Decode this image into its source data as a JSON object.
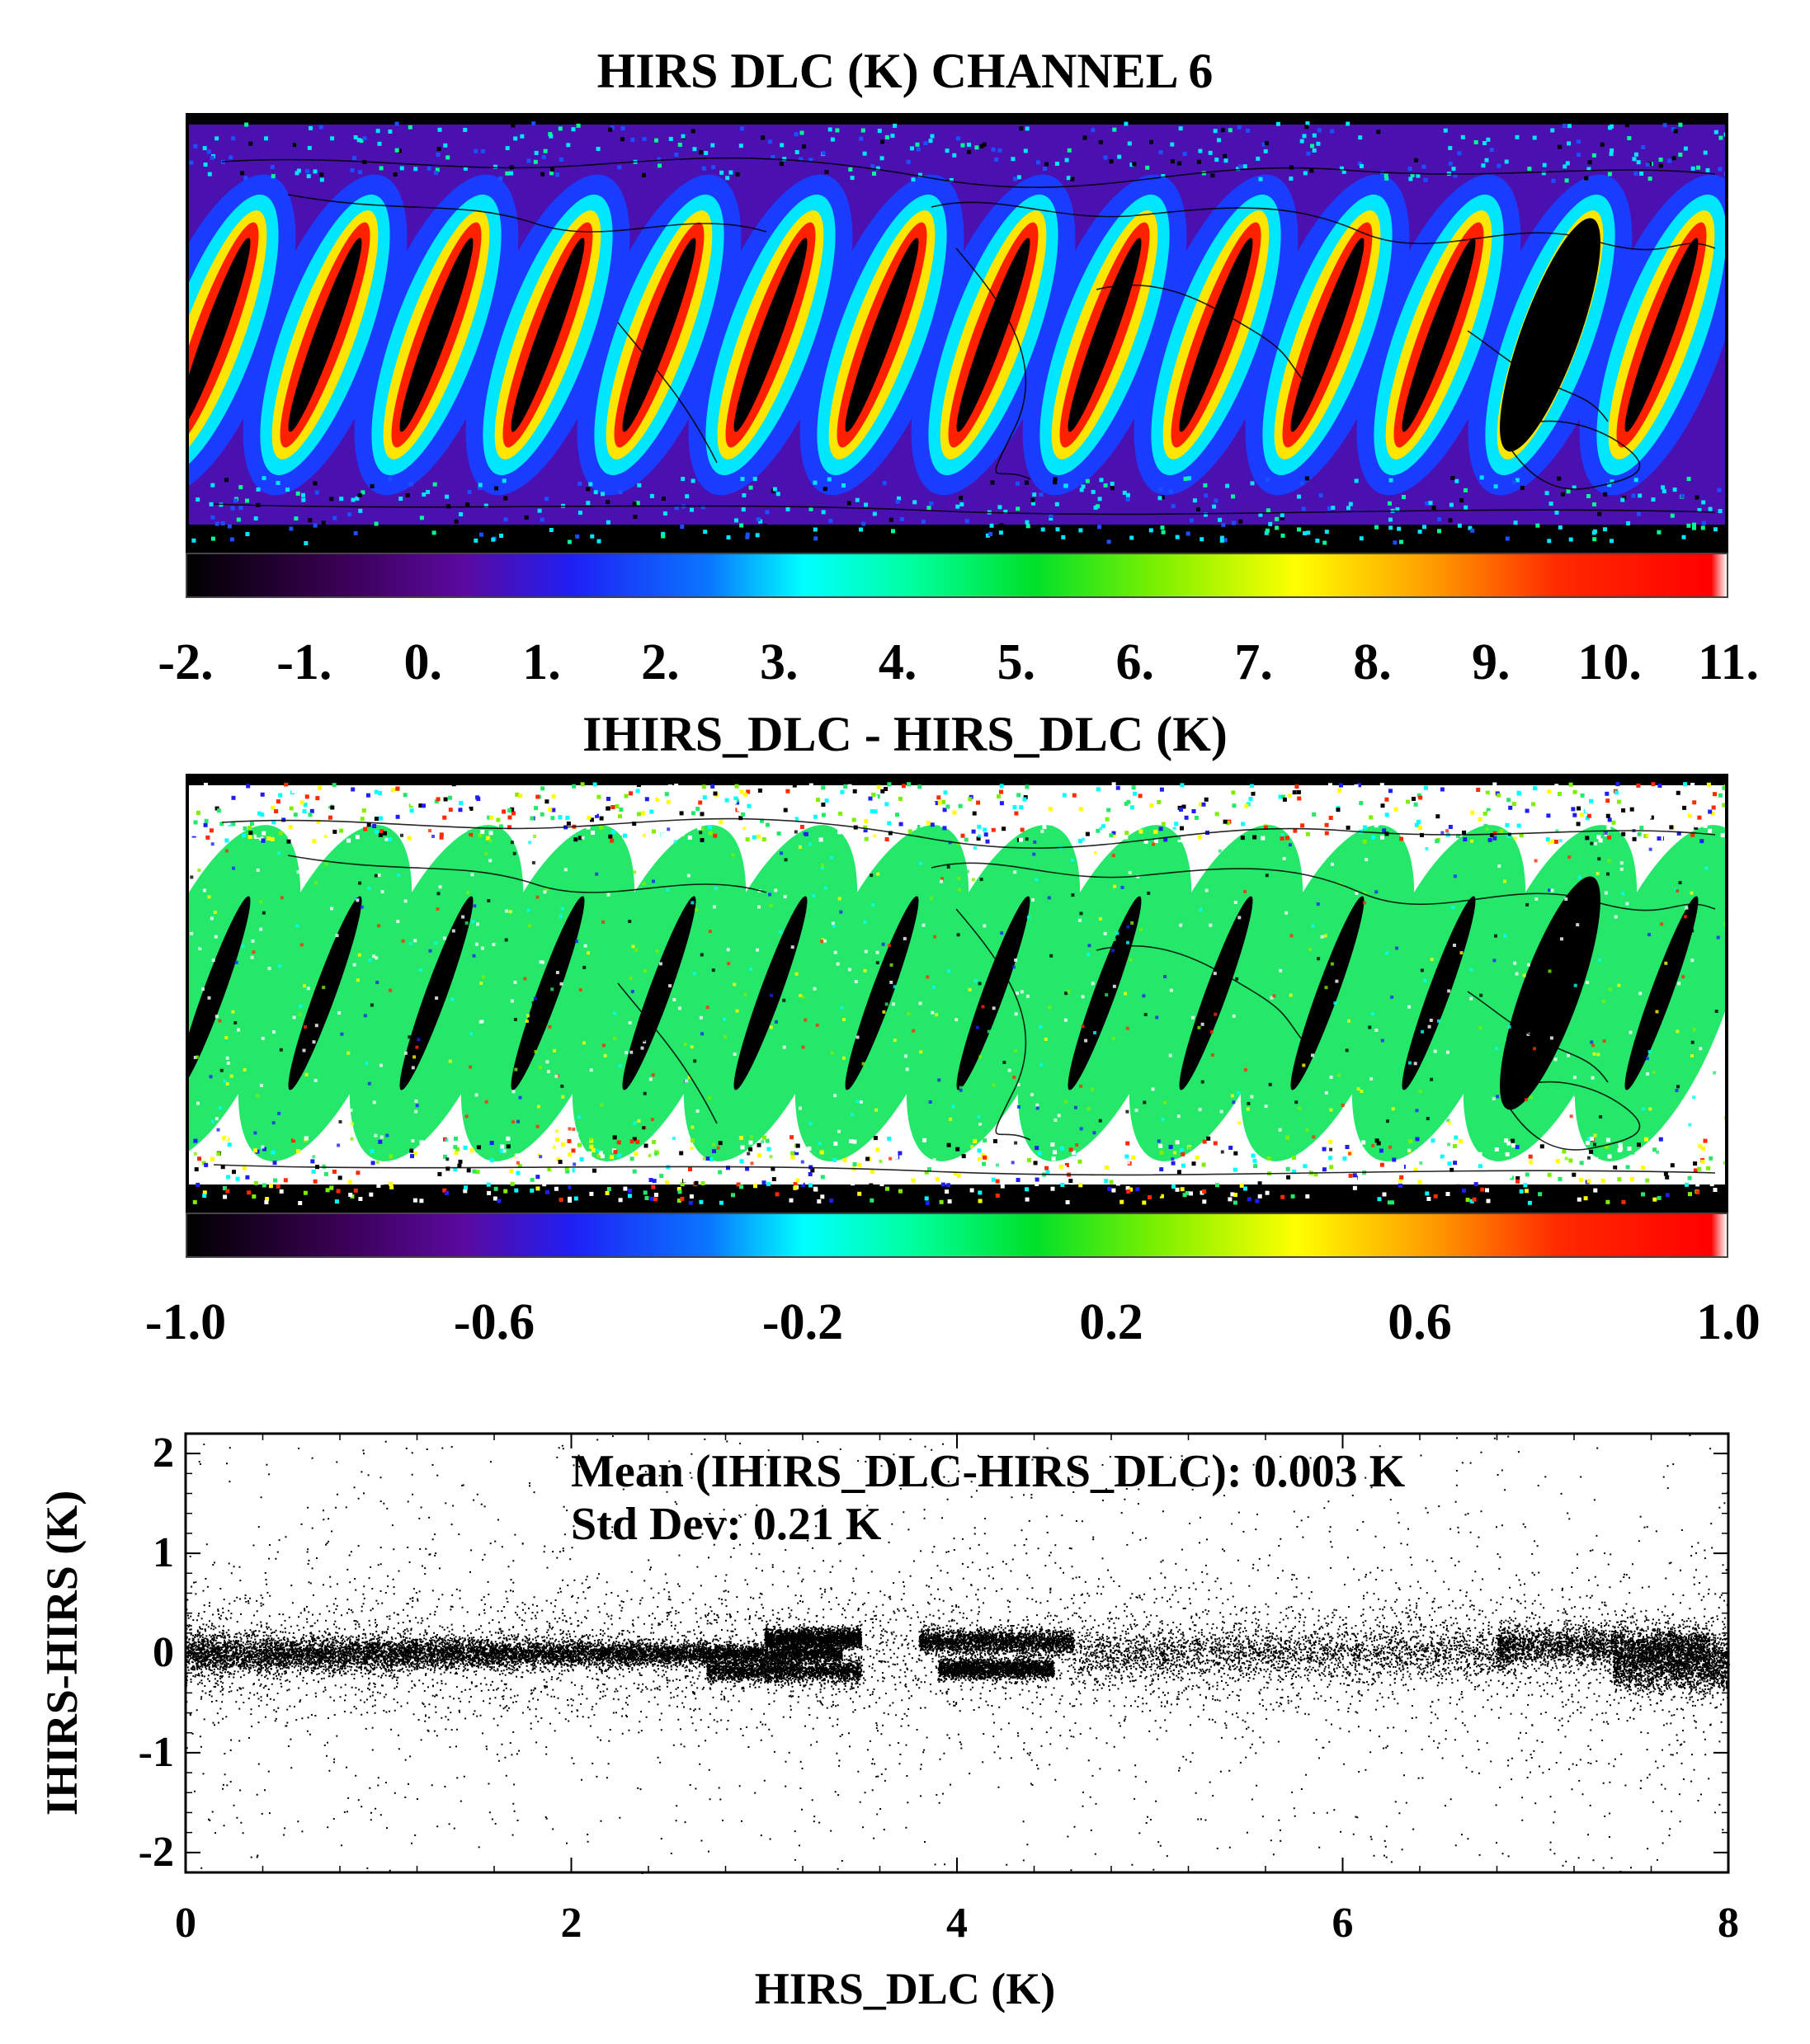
{
  "chart_data": [
    {
      "type": "heatmap",
      "title": "HIRS DLC (K) CHANNEL 6",
      "colorbar": {
        "ticks": [
          "-2.",
          "-1.",
          "0.",
          "1.",
          "2.",
          "3.",
          "4.",
          "5.",
          "6.",
          "7.",
          "8.",
          "9.",
          "10.",
          "11."
        ],
        "min": -2,
        "max": 11
      },
      "colors": {
        "background": "#4a10b0",
        "swath_outer": "#1a3cff",
        "swath_mid": "#00e6ff",
        "swath_inner": "#ffe600",
        "swath_core": "#ff2000",
        "nadir_gap": "#000000"
      }
    },
    {
      "type": "heatmap",
      "title": "IHIRS_DLC - HIRS_DLC (K)",
      "colorbar": {
        "ticks": [
          "-1.0",
          "-0.6",
          "-0.2",
          "0.2",
          "0.6",
          "1.0"
        ],
        "min": -1.0,
        "max": 1.0
      },
      "colors": {
        "background": "#25e86a",
        "nadir_gap": "#000000"
      }
    },
    {
      "type": "scatter",
      "xlabel": "HIRS_DLC (K)",
      "ylabel": "IHIRS-HIRS (K)",
      "xlim": [
        0,
        8
      ],
      "ylim": [
        -2.2,
        2.2
      ],
      "xticks": [
        "0",
        "2",
        "4",
        "6",
        "8"
      ],
      "yticks": [
        "2",
        "1",
        "0",
        "-1",
        "-2"
      ],
      "annotations": [
        "Mean (IHIRS_DLC-HIRS_DLC): 0.003 K",
        "Std Dev: 0.21 K"
      ],
      "clusters": [
        {
          "x": [
            0,
            3.4
          ],
          "y_center": 0.0,
          "y_spread": 0.1
        },
        {
          "x": [
            2.7,
            3.5
          ],
          "y_center": -0.17,
          "y_spread": 0.06
        },
        {
          "x": [
            3.0,
            3.5
          ],
          "y_center": 0.15,
          "y_spread": 0.05
        },
        {
          "x": [
            3.8,
            4.6
          ],
          "y_center": 0.12,
          "y_spread": 0.06
        },
        {
          "x": [
            3.9,
            4.5
          ],
          "y_center": -0.15,
          "y_spread": 0.05
        },
        {
          "x": [
            4.6,
            6.9
          ],
          "y_center": 0.0,
          "y_spread": 0.12
        },
        {
          "x": [
            6.8,
            7.9
          ],
          "y_center": 0.08,
          "y_spread": 0.1
        },
        {
          "x": [
            7.4,
            8.0
          ],
          "y_center": -0.1,
          "y_spread": 0.14
        }
      ],
      "mean": 0.003,
      "std_dev": 0.21
    }
  ]
}
